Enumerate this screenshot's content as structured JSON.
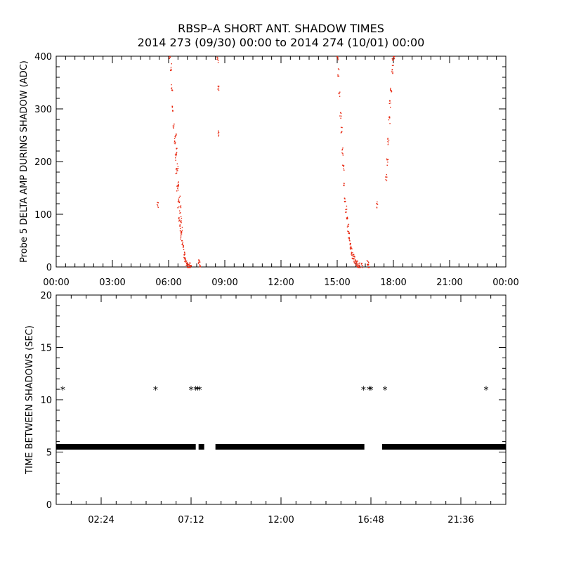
{
  "title": "RBSP–A SHORT ANT. SHADOW TIMES",
  "subtitle": "2014 273 (09/30) 00:00 to 2014 274 (10/01) 00:00",
  "chart_data": [
    {
      "type": "scatter",
      "ylabel": "Probe 5 DELTA AMP DURING SHADOW (ADC)",
      "xlabel": "",
      "xlim": [
        0,
        24
      ],
      "ylim": [
        0,
        400
      ],
      "x_ticks": [
        "00:00",
        "03:00",
        "06:00",
        "09:00",
        "12:00",
        "15:00",
        "18:00",
        "21:00",
        "00:00"
      ],
      "y_ticks": [
        "0",
        "100",
        "200",
        "300",
        "400"
      ],
      "grid": false,
      "marker_color": "#e8260e",
      "points_description_hours": "approximate traces",
      "x": [
        6.05,
        6.1,
        6.15,
        6.2,
        6.25,
        6.3,
        6.35,
        6.4,
        6.45,
        6.5,
        6.55,
        6.6,
        6.65,
        6.7,
        6.75,
        6.8,
        6.85,
        6.9,
        6.95,
        7.0,
        7.05,
        7.1,
        7.15,
        6.35,
        6.4,
        6.45,
        6.5,
        6.55,
        6.6,
        6.65,
        6.7,
        7.6,
        7.65,
        5.4,
        8.6,
        8.62,
        8.65,
        15.0,
        15.05,
        15.1,
        15.15,
        15.2,
        15.25,
        15.3,
        15.35,
        15.4,
        15.45,
        15.5,
        15.55,
        15.6,
        15.65,
        15.7,
        15.75,
        15.8,
        15.85,
        15.9,
        15.95,
        16.0,
        16.05,
        16.1,
        16.15,
        16.2,
        16.3,
        16.6,
        16.65,
        17.6,
        17.65,
        17.7,
        17.75,
        17.8,
        17.85,
        17.9,
        17.95,
        18.0,
        17.1
      ],
      "y": [
        400,
        380,
        340,
        300,
        270,
        240,
        210,
        180,
        150,
        120,
        95,
        75,
        60,
        45,
        35,
        25,
        18,
        12,
        8,
        5,
        3,
        2,
        1,
        250,
        220,
        190,
        160,
        130,
        110,
        90,
        70,
        10,
        5,
        120,
        395,
        340,
        255,
        400,
        370,
        330,
        290,
        260,
        220,
        190,
        160,
        130,
        110,
        90,
        75,
        60,
        50,
        40,
        30,
        22,
        18,
        14,
        10,
        8,
        6,
        4,
        3,
        2,
        1,
        8,
        4,
        170,
        200,
        240,
        280,
        310,
        340,
        370,
        390,
        400,
        120
      ]
    },
    {
      "type": "scatter",
      "ylabel": "TIME BETWEEN SHADOWS (SEC)",
      "xlabel": "",
      "xlim": [
        0,
        24
      ],
      "ylim": [
        0,
        20
      ],
      "x_ticks": [
        "02:24",
        "07:12",
        "12:00",
        "16:48",
        "21:36"
      ],
      "x_tick_hours": [
        2.4,
        7.2,
        12.0,
        16.8,
        21.6
      ],
      "y_ticks": [
        "0",
        "5",
        "10",
        "15",
        "20"
      ],
      "grid": false,
      "marker_color": "#000000",
      "baseline_value": 5.5,
      "baseline_segments_hours": [
        [
          0.0,
          7.45
        ],
        [
          7.6,
          7.9
        ],
        [
          8.5,
          16.45
        ],
        [
          17.4,
          24.0
        ]
      ],
      "outliers_x": [
        0.35,
        5.3,
        7.2,
        7.45,
        7.55,
        7.65,
        16.4,
        16.7,
        16.8,
        17.55,
        22.95
      ],
      "outliers_y": [
        11,
        11,
        11,
        11,
        11,
        11,
        11,
        11,
        11,
        11,
        11
      ]
    }
  ]
}
